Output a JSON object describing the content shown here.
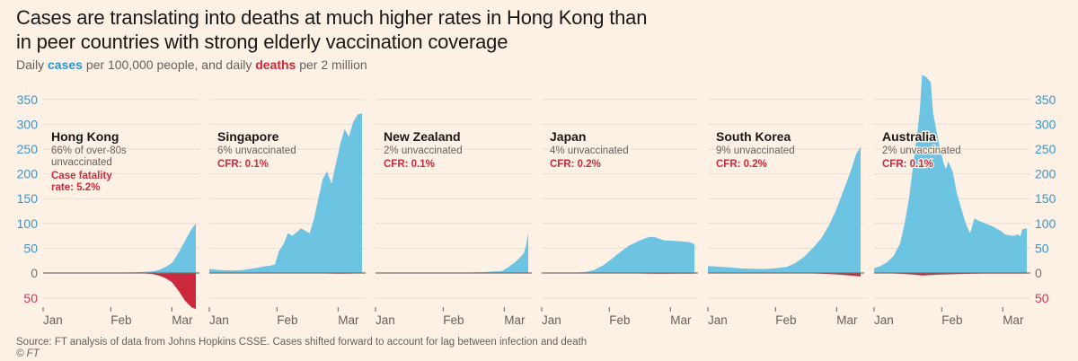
{
  "header": {
    "title": "Cases are translating into deaths at much higher rates in Hong Kong than in peer countries with strong elderly vaccination coverage",
    "subtitle_prefix": "Daily ",
    "subtitle_cases": "cases",
    "subtitle_middle": " per 100,000 people, and daily ",
    "subtitle_deaths": "deaths",
    "subtitle_suffix": " per 2 million"
  },
  "footer": {
    "source": "Source: FT analysis of data from Johns Hopkins CSSE. Cases shifted forward to account for lag between infection and death",
    "copyright": "© FT"
  },
  "colors": {
    "cases": "#6cc3e2",
    "deaths": "#cc2a3c",
    "cases_axis": "#3c95c7",
    "deaths_axis": "#cc3a4e",
    "zero_axis": "#77706b",
    "grid": "#eaded3",
    "background": "#fdf1e6"
  },
  "chart_data": {
    "type": "area",
    "title": "Cases are translating into deaths at much higher rates in Hong Kong than in peer countries with strong elderly vaccination coverage",
    "subtitle": "Daily cases per 100,000 people, and daily deaths per 2 million",
    "ylabel_cases": "Daily cases per 100,000 people",
    "ylabel_deaths": "Daily deaths per 2 million",
    "cases_ylim": [
      0,
      350
    ],
    "deaths_ylim": [
      0,
      50
    ],
    "cases_ticks": [
      0,
      50,
      100,
      150,
      200,
      250,
      300,
      350
    ],
    "deaths_ticks": [
      50
    ],
    "x_ticks": [
      "Jan",
      "Feb",
      "Mar"
    ],
    "x_range_days": [
      0,
      70
    ],
    "x_tick_days": [
      0,
      31,
      59
    ],
    "grid": true,
    "y_axis_placement": "left-and-right",
    "panels": [
      {
        "name": "Hong Kong",
        "note": "66% of over-80s unvaccinated",
        "note_lines": [
          "66% of over-80s",
          "unvaccinated"
        ],
        "cfr_lines": [
          "Case fatality",
          "rate: 5.2%"
        ],
        "cases_days": [
          0,
          10,
          20,
          30,
          40,
          45,
          50,
          53,
          56,
          59,
          62,
          65,
          68,
          70
        ],
        "cases": [
          0,
          0,
          0,
          0.5,
          1,
          2,
          3,
          6,
          12,
          20,
          40,
          65,
          88,
          100
        ],
        "deaths_days": [
          0,
          30,
          45,
          50,
          53,
          56,
          59,
          62,
          65,
          68,
          70
        ],
        "deaths": [
          0,
          0,
          0.5,
          2,
          5,
          10,
          18,
          35,
          55,
          68,
          72
        ]
      },
      {
        "name": "Singapore",
        "note_lines": [
          "6% unvaccinated"
        ],
        "cfr_lines": [
          "CFR: 0.1%"
        ],
        "cases_days": [
          0,
          5,
          10,
          15,
          20,
          25,
          28,
          30,
          32,
          34,
          36,
          38,
          40,
          42,
          44,
          46,
          48,
          50,
          52,
          54,
          56,
          58,
          60,
          62,
          64,
          66,
          68,
          70
        ],
        "cases": [
          8,
          6,
          5,
          6,
          9,
          13,
          15,
          17,
          45,
          58,
          80,
          75,
          82,
          90,
          85,
          80,
          110,
          150,
          190,
          205,
          180,
          220,
          260,
          290,
          275,
          305,
          320,
          322
        ],
        "deaths_days": [
          0,
          40,
          50,
          55,
          60,
          65,
          70
        ],
        "deaths": [
          0,
          0,
          0.5,
          1,
          1.5,
          1,
          0.5
        ]
      },
      {
        "name": "New Zealand",
        "note_lines": [
          "2% unvaccinated"
        ],
        "cfr_lines": [
          "CFR: 0.1%"
        ],
        "cases_days": [
          0,
          20,
          35,
          45,
          50,
          55,
          58,
          61,
          64,
          66,
          68,
          69,
          70
        ],
        "cases": [
          0,
          0,
          0,
          1,
          2,
          3,
          4,
          12,
          22,
          30,
          40,
          55,
          82
        ],
        "deaths_days": [
          0,
          70
        ],
        "deaths": [
          0,
          0
        ]
      },
      {
        "name": "Japan",
        "note_lines": [
          "4% unvaccinated"
        ],
        "cfr_lines": [
          "CFR: 0.2%"
        ],
        "cases_days": [
          0,
          15,
          20,
          24,
          28,
          32,
          36,
          40,
          44,
          48,
          50,
          52,
          56,
          60,
          64,
          68,
          70
        ],
        "cases": [
          0,
          0.5,
          2,
          6,
          15,
          28,
          42,
          55,
          64,
          71,
          73,
          72,
          66,
          65,
          64,
          62,
          58
        ],
        "deaths_days": [
          0,
          30,
          40,
          50,
          60,
          70
        ],
        "deaths": [
          0,
          0,
          0.5,
          1.5,
          1.5,
          1
        ]
      },
      {
        "name": "South Korea",
        "note_lines": [
          "9% unvaccinated"
        ],
        "cfr_lines": [
          "CFR: 0.2%"
        ],
        "cases_days": [
          0,
          8,
          16,
          24,
          30,
          36,
          40,
          44,
          48,
          52,
          56,
          59,
          62,
          65,
          68,
          70
        ],
        "cases": [
          14,
          12,
          9,
          8,
          9,
          12,
          20,
          32,
          50,
          70,
          100,
          130,
          165,
          200,
          240,
          255
        ],
        "deaths_days": [
          0,
          40,
          50,
          55,
          60,
          65,
          70
        ],
        "deaths": [
          0,
          0,
          1,
          2,
          3,
          5,
          7
        ]
      },
      {
        "name": "Australia",
        "note_lines": [
          "2% unvaccinated"
        ],
        "cfr_lines": [
          "CFR: 0.1%"
        ],
        "cases_days": [
          0,
          3,
          6,
          9,
          12,
          14,
          16,
          18,
          19,
          20,
          21,
          22,
          24,
          26,
          27,
          28,
          30,
          32,
          33,
          34,
          36,
          38,
          40,
          42,
          44,
          46,
          48,
          50,
          52,
          54,
          56,
          58,
          60,
          62,
          64,
          66,
          67,
          68,
          70
        ],
        "cases": [
          10,
          14,
          22,
          35,
          60,
          100,
          150,
          220,
          255,
          290,
          330,
          400,
          395,
          385,
          325,
          300,
          255,
          220,
          210,
          225,
          205,
          160,
          130,
          100,
          80,
          110,
          105,
          102,
          98,
          95,
          90,
          85,
          78,
          76,
          75,
          78,
          74,
          88,
          90
        ],
        "deaths_days": [
          0,
          10,
          18,
          22,
          26,
          30,
          40,
          50,
          70
        ],
        "deaths": [
          0,
          1,
          3,
          5,
          4,
          3,
          2,
          1,
          1
        ]
      }
    ]
  }
}
